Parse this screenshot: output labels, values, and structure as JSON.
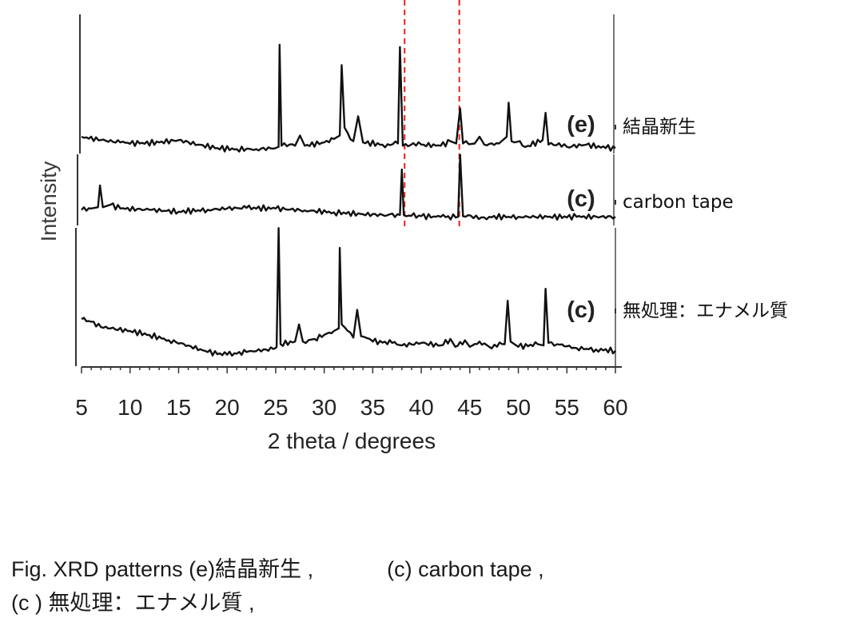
{
  "chart_data": {
    "type": "line",
    "xlabel": "2 theta / degrees",
    "ylabel": "Intensity",
    "xlim": [
      5,
      60
    ],
    "xticks": [
      5,
      10,
      15,
      20,
      25,
      30,
      35,
      40,
      45,
      50,
      55,
      60
    ],
    "reference_lines_x": [
      38.2,
      44.0
    ],
    "reference_line_color": "#e8221b",
    "line_color": "#111111",
    "series": [
      {
        "panel_label": "(e)",
        "name": "結晶新生",
        "points": [
          [
            5,
            0.12
          ],
          [
            7,
            0.09
          ],
          [
            9,
            0.07
          ],
          [
            11,
            0.06
          ],
          [
            13,
            0.07
          ],
          [
            15,
            0.09
          ],
          [
            17,
            0.05
          ],
          [
            19,
            0.02
          ],
          [
            21,
            0.01
          ],
          [
            23,
            0.01
          ],
          [
            25,
            0.02
          ],
          [
            25.3,
            0.03
          ],
          [
            25.4,
            0.93
          ],
          [
            25.6,
            0.04
          ],
          [
            27,
            0.04
          ],
          [
            27.5,
            0.13
          ],
          [
            28,
            0.04
          ],
          [
            30,
            0.07
          ],
          [
            31,
            0.1
          ],
          [
            31.6,
            0.13
          ],
          [
            31.8,
            0.75
          ],
          [
            32.1,
            0.2
          ],
          [
            33,
            0.08
          ],
          [
            33.5,
            0.3
          ],
          [
            34,
            0.07
          ],
          [
            36,
            0.05
          ],
          [
            37.6,
            0.06
          ],
          [
            37.8,
            0.91
          ],
          [
            38.1,
            0.04
          ],
          [
            40,
            0.05
          ],
          [
            42,
            0.04
          ],
          [
            43,
            0.08
          ],
          [
            43.6,
            0.06
          ],
          [
            44,
            0.37
          ],
          [
            44.3,
            0.06
          ],
          [
            45.5,
            0.06
          ],
          [
            46,
            0.12
          ],
          [
            46.5,
            0.05
          ],
          [
            48,
            0.06
          ],
          [
            48.8,
            0.12
          ],
          [
            49,
            0.42
          ],
          [
            49.3,
            0.08
          ],
          [
            51,
            0.04
          ],
          [
            52.5,
            0.09
          ],
          [
            52.8,
            0.33
          ],
          [
            53.1,
            0.05
          ],
          [
            55,
            0.03
          ],
          [
            57,
            0.05
          ],
          [
            59,
            0.02
          ],
          [
            60,
            0.02
          ]
        ]
      },
      {
        "panel_label": "(c)",
        "name": "carbon tape",
        "points": [
          [
            5,
            0.12
          ],
          [
            6,
            0.14
          ],
          [
            6.7,
            0.16
          ],
          [
            6.9,
            0.5
          ],
          [
            7.2,
            0.16
          ],
          [
            8,
            0.2
          ],
          [
            9,
            0.14
          ],
          [
            12,
            0.12
          ],
          [
            15,
            0.09
          ],
          [
            18,
            0.12
          ],
          [
            20,
            0.14
          ],
          [
            22,
            0.15
          ],
          [
            25,
            0.14
          ],
          [
            28,
            0.11
          ],
          [
            31,
            0.08
          ],
          [
            34,
            0.05
          ],
          [
            36,
            0.04
          ],
          [
            37.8,
            0.04
          ],
          [
            38,
            0.75
          ],
          [
            38.2,
            0.04
          ],
          [
            40,
            0.02
          ],
          [
            42,
            0.01
          ],
          [
            43.8,
            0.01
          ],
          [
            44,
            0.98
          ],
          [
            44.3,
            0.02
          ],
          [
            47,
            0.01
          ],
          [
            50,
            0.01
          ],
          [
            53,
            0.01
          ],
          [
            56,
            0.01
          ],
          [
            60,
            0.01
          ]
        ]
      },
      {
        "panel_label": "(c)",
        "name": "無処理：エナメル質",
        "points": [
          [
            5,
            0.29
          ],
          [
            6,
            0.27
          ],
          [
            7,
            0.23
          ],
          [
            8,
            0.22
          ],
          [
            10,
            0.2
          ],
          [
            12,
            0.17
          ],
          [
            14,
            0.13
          ],
          [
            16,
            0.09
          ],
          [
            18,
            0.04
          ],
          [
            20,
            0.02
          ],
          [
            22,
            0.04
          ],
          [
            24,
            0.06
          ],
          [
            25,
            0.07
          ],
          [
            25.1,
            0.08
          ],
          [
            25.3,
            0.98
          ],
          [
            25.5,
            0.1
          ],
          [
            27,
            0.12
          ],
          [
            27.4,
            0.25
          ],
          [
            27.8,
            0.12
          ],
          [
            29,
            0.14
          ],
          [
            30,
            0.17
          ],
          [
            31,
            0.2
          ],
          [
            31.5,
            0.22
          ],
          [
            31.6,
            0.83
          ],
          [
            31.8,
            0.25
          ],
          [
            33,
            0.15
          ],
          [
            33.4,
            0.36
          ],
          [
            33.8,
            0.16
          ],
          [
            35,
            0.12
          ],
          [
            37,
            0.11
          ],
          [
            38,
            0.09
          ],
          [
            40,
            0.11
          ],
          [
            42,
            0.09
          ],
          [
            43,
            0.14
          ],
          [
            43.5,
            0.08
          ],
          [
            44.5,
            0.13
          ],
          [
            45,
            0.08
          ],
          [
            46,
            0.12
          ],
          [
            47,
            0.08
          ],
          [
            48.6,
            0.1
          ],
          [
            48.9,
            0.43
          ],
          [
            49.2,
            0.12
          ],
          [
            50,
            0.08
          ],
          [
            52,
            0.1
          ],
          [
            52.6,
            0.09
          ],
          [
            52.8,
            0.52
          ],
          [
            53.1,
            0.11
          ],
          [
            54,
            0.1
          ],
          [
            56,
            0.07
          ],
          [
            58,
            0.06
          ],
          [
            60,
            0.05
          ]
        ]
      }
    ]
  },
  "caption": {
    "line1_part1": "Fig. XRD patterns (e)結晶新生 ,",
    "line1_part2": "(c) carbon tape ,",
    "line2": "(c ) 無処理：エナメル質 ,"
  }
}
